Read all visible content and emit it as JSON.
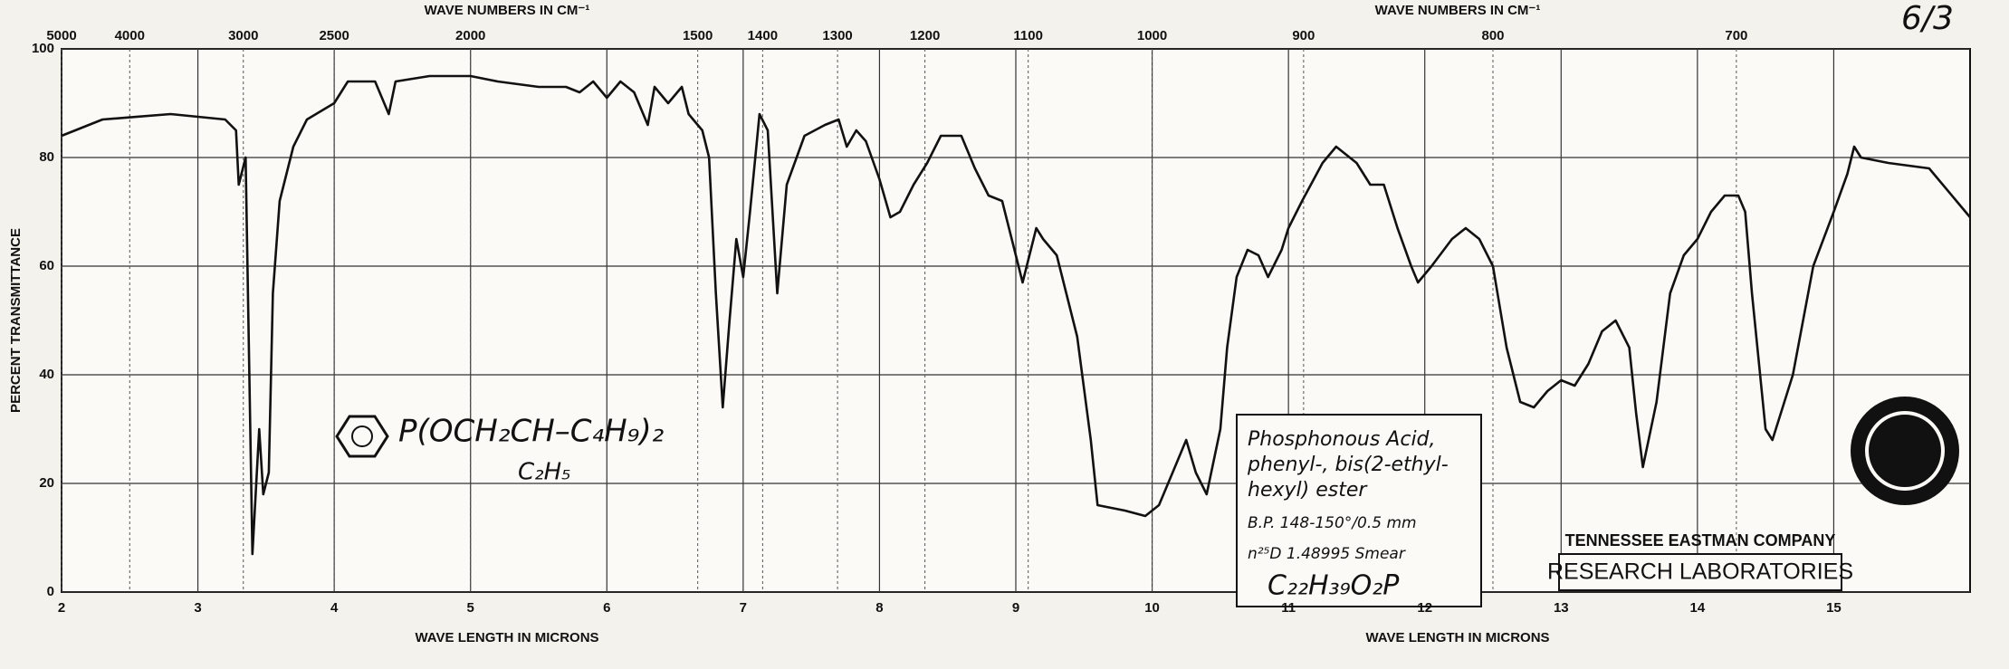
{
  "chart_data": {
    "type": "line",
    "y_label": "PERCENT TRANSMITTANCE",
    "x_labels": [
      "WAVE LENGTH IN MICRONS",
      "WAVE LENGTH IN MICRONS"
    ],
    "x2_labels": [
      "WAVE NUMBERS IN CM⁻¹",
      "WAVE NUMBERS IN CM⁻¹"
    ],
    "x": [
      2,
      2.3,
      2.8,
      3,
      3.2,
      3.28,
      3.3,
      3.35,
      3.4,
      3.45,
      3.48,
      3.52,
      3.55,
      3.6,
      3.7,
      3.8,
      4,
      4.1,
      4.3,
      4.4,
      4.45,
      4.7,
      5,
      5.2,
      5.5,
      5.7,
      5.8,
      5.9,
      6,
      6.1,
      6.2,
      6.3,
      6.35,
      6.45,
      6.55,
      6.6,
      6.7,
      6.75,
      6.8,
      6.85,
      6.9,
      6.95,
      7,
      7.05,
      7.12,
      7.18,
      7.25,
      7.32,
      7.45,
      7.6,
      7.7,
      7.76,
      7.83,
      7.9,
      8,
      8.08,
      8.15,
      8.25,
      8.35,
      8.45,
      8.6,
      8.7,
      8.8,
      8.9,
      9,
      9.05,
      9.15,
      9.2,
      9.3,
      9.45,
      9.55,
      9.6,
      9.8,
      9.95,
      10.05,
      10.15,
      10.25,
      10.32,
      10.4,
      10.5,
      10.55,
      10.62,
      10.7,
      10.78,
      10.85,
      10.95,
      11,
      11.1,
      11.25,
      11.35,
      11.5,
      11.6,
      11.7,
      11.8,
      11.9,
      11.95,
      12.05,
      12.2,
      12.3,
      12.4,
      12.5,
      12.6,
      12.7,
      12.8,
      12.9,
      13,
      13.1,
      13.2,
      13.3,
      13.4,
      13.5,
      13.55,
      13.6,
      13.7,
      13.8,
      13.9,
      14,
      14.1,
      14.2,
      14.3,
      14.35,
      14.4,
      14.5,
      14.55,
      14.7,
      14.85,
      15,
      15.1,
      15.15,
      15.2,
      15.4,
      15.7,
      16
    ],
    "values": [
      84,
      87,
      88,
      87.5,
      87,
      85,
      75,
      80,
      7,
      30,
      18,
      22,
      55,
      72,
      82,
      87,
      90,
      94,
      94,
      88,
      94,
      95,
      95,
      94,
      93,
      93,
      92,
      94,
      91,
      94,
      92,
      86,
      93,
      90,
      93,
      88,
      85,
      80,
      55,
      34,
      50,
      65,
      58,
      70,
      88,
      85,
      55,
      75,
      84,
      86,
      87,
      82,
      85,
      83,
      76,
      69,
      70,
      75,
      79,
      84,
      84,
      78,
      73,
      72,
      62,
      57,
      67,
      65,
      62,
      47,
      28,
      16,
      15,
      14,
      16,
      22,
      28,
      22,
      18,
      30,
      45,
      58,
      63,
      62,
      58,
      63,
      67,
      72,
      79,
      82,
      79,
      75,
      75,
      67,
      60,
      57,
      60,
      65,
      67,
      65,
      60,
      45,
      35,
      34,
      37,
      39,
      38,
      42,
      48,
      50,
      45,
      33,
      23,
      35,
      55,
      62,
      65,
      70,
      73,
      73,
      70,
      55,
      30,
      28,
      40,
      60,
      70,
      77,
      82,
      80,
      79,
      78,
      69
    ],
    "color": "#111111",
    "xlim": [
      2,
      16
    ],
    "xticks": [
      2,
      3,
      4,
      5,
      6,
      7,
      8,
      9,
      10,
      11,
      12,
      13,
      14,
      15
    ],
    "x2ticks": [
      5000,
      4000,
      3000,
      2500,
      2000,
      1500,
      1400,
      1300,
      1200,
      1100,
      1000,
      900,
      800,
      700
    ],
    "ylim": [
      0,
      100
    ],
    "yticks": [
      0,
      20,
      40,
      60,
      80,
      100
    ],
    "grid": true,
    "annotations": {
      "page_number": "6/3",
      "structure": "P(OCH₂CH–C₄H₉)₂",
      "structure_branch": "C₂H₅",
      "compound_name": [
        "Phosphonous Acid,",
        "phenyl-, bis(2-ethyl-",
        "hexyl) ester"
      ],
      "boiling_point": "B.P. 148-150°/0.5 mm",
      "refractive_index": "n²⁵D 1.48995  Smear",
      "formula": "C₂₂H₃₉O₂P",
      "company": "TENNESSEE EASTMAN COMPANY",
      "lab": "RESEARCH LABORATORIES"
    }
  }
}
